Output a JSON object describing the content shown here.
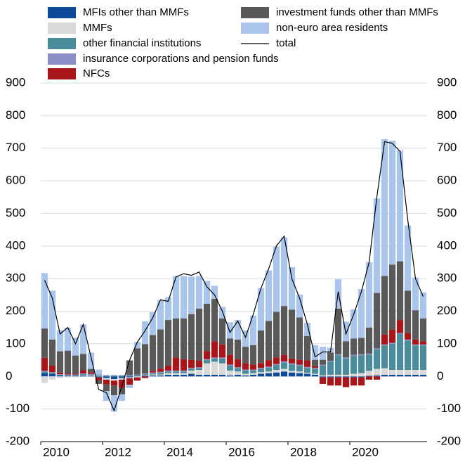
{
  "chart_data": {
    "type": "bar",
    "stacked": true,
    "grid": true,
    "categories": [
      "2010",
      null,
      null,
      null,
      null,
      null,
      null,
      null,
      "2012",
      null,
      null,
      null,
      null,
      null,
      null,
      null,
      "2014",
      null,
      null,
      null,
      null,
      null,
      null,
      null,
      "2016",
      null,
      null,
      null,
      null,
      null,
      null,
      null,
      "2018",
      null,
      null,
      null,
      null,
      null,
      null,
      null,
      "2020",
      null,
      null,
      null,
      null,
      null,
      null,
      null,
      null,
      null
    ],
    "ylim": [
      -200,
      900
    ],
    "yticks": [
      -200,
      -100,
      0,
      100,
      200,
      300,
      400,
      500,
      600,
      700,
      800,
      900
    ],
    "series": [
      {
        "name": "MFIs other than MMFs",
        "color": "#0d4a9a",
        "values": [
          10,
          8,
          3,
          2,
          2,
          3,
          2,
          -3,
          -5,
          -8,
          -5,
          -3,
          2,
          3,
          3,
          3,
          5,
          5,
          5,
          8,
          5,
          5,
          5,
          5,
          3,
          5,
          3,
          5,
          8,
          10,
          12,
          15,
          12,
          10,
          8,
          5,
          -3,
          -3,
          -3,
          -3,
          -3,
          -3,
          2,
          3,
          5,
          5,
          5,
          5,
          5,
          5
        ]
      },
      {
        "name": "MMFs",
        "color": "#d9d9d9",
        "values": [
          -20,
          -10,
          -5,
          -3,
          -3,
          2,
          2,
          2,
          -5,
          -5,
          -5,
          -3,
          -3,
          2,
          3,
          3,
          5,
          5,
          5,
          10,
          15,
          35,
          40,
          35,
          15,
          10,
          5,
          5,
          5,
          5,
          8,
          8,
          5,
          5,
          3,
          3,
          3,
          5,
          5,
          5,
          8,
          10,
          15,
          20,
          20,
          15,
          15,
          15,
          15,
          15
        ]
      },
      {
        "name": "other financial institutions",
        "color": "#4a8c9a",
        "values": [
          5,
          3,
          2,
          2,
          2,
          2,
          2,
          2,
          2,
          2,
          2,
          2,
          2,
          2,
          3,
          5,
          5,
          5,
          5,
          5,
          5,
          10,
          10,
          15,
          15,
          10,
          10,
          8,
          10,
          12,
          15,
          20,
          20,
          18,
          15,
          15,
          30,
          40,
          60,
          50,
          55,
          55,
          50,
          60,
          70,
          80,
          110,
          90,
          75,
          75
        ]
      },
      {
        "name": "insurance corporations and pension funds",
        "color": "#8b8fc5",
        "values": [
          2,
          2,
          2,
          2,
          2,
          2,
          2,
          2,
          2,
          2,
          2,
          2,
          2,
          2,
          3,
          3,
          3,
          3,
          3,
          3,
          3,
          3,
          3,
          3,
          3,
          3,
          3,
          3,
          3,
          3,
          3,
          3,
          3,
          3,
          3,
          3,
          3,
          3,
          3,
          3,
          3,
          3,
          3,
          3,
          3,
          3,
          3,
          3,
          3,
          3
        ]
      },
      {
        "name": "NFCs",
        "color": "#a8161a",
        "values": [
          40,
          20,
          5,
          3,
          3,
          10,
          5,
          -10,
          -15,
          -15,
          -25,
          -20,
          -10,
          -5,
          5,
          10,
          15,
          40,
          35,
          25,
          20,
          25,
          50,
          40,
          30,
          25,
          20,
          15,
          15,
          20,
          20,
          20,
          15,
          15,
          20,
          5,
          -20,
          -25,
          -25,
          -30,
          -25,
          -25,
          -10,
          -10,
          30,
          40,
          40,
          20,
          15,
          10
        ]
      },
      {
        "name": "investment funds other than MMFs",
        "color": "#595959",
        "values": [
          90,
          80,
          65,
          70,
          55,
          50,
          10,
          -10,
          -20,
          -30,
          -20,
          45,
          80,
          90,
          110,
          120,
          140,
          120,
          125,
          140,
          160,
          145,
          130,
          80,
          50,
          60,
          50,
          60,
          100,
          120,
          140,
          150,
          150,
          130,
          75,
          20,
          15,
          25,
          140,
          50,
          50,
          50,
          80,
          170,
          180,
          200,
          180,
          130,
          90,
          70
        ]
      },
      {
        "name": "non-euro area residents",
        "color": "#a9c5ec",
        "values": [
          170,
          150,
          65,
          70,
          55,
          90,
          50,
          15,
          -30,
          -50,
          -20,
          -10,
          20,
          70,
          70,
          90,
          70,
          130,
          130,
          115,
          100,
          70,
          40,
          35,
          50,
          60,
          50,
          90,
          130,
          155,
          200,
          210,
          130,
          70,
          40,
          45,
          40,
          15,
          90,
          60,
          90,
          150,
          200,
          290,
          420,
          380,
          340,
          200,
          100,
          80
        ]
      },
      {
        "name": "total",
        "color": "#000000",
        "kind": "line",
        "values": [
          295,
          240,
          130,
          150,
          100,
          160,
          60,
          -40,
          -50,
          -105,
          -30,
          50,
          105,
          140,
          180,
          235,
          230,
          305,
          315,
          310,
          320,
          275,
          250,
          200,
          135,
          170,
          120,
          190,
          270,
          330,
          400,
          430,
          300,
          240,
          160,
          60,
          75,
          75,
          260,
          130,
          190,
          260,
          350,
          550,
          720,
          715,
          690,
          480,
          300,
          245
        ]
      }
    ]
  }
}
